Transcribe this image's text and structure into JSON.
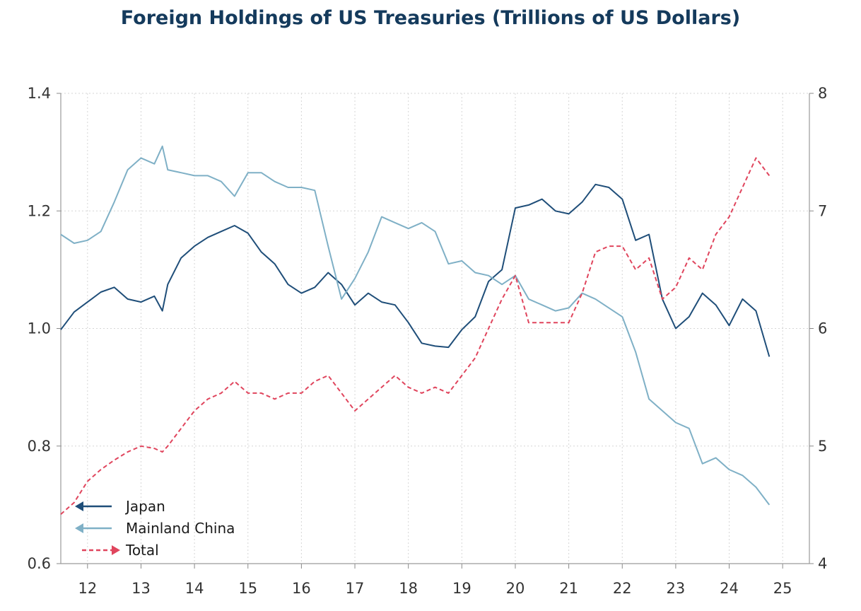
{
  "chart_data": {
    "type": "line",
    "title": "Foreign Holdings of US Treasuries (Trillions of US Dollars)",
    "x_unit": "year",
    "x_ticks": [
      "12",
      "13",
      "14",
      "15",
      "16",
      "17",
      "18",
      "19",
      "20",
      "21",
      "22",
      "23",
      "24",
      "25"
    ],
    "xlim": [
      2011.5,
      2025.5
    ],
    "y_left": {
      "lim": [
        0.6,
        1.4
      ],
      "ticks": [
        "0.6",
        "0.8",
        "1.0",
        "1.2",
        "1.4"
      ]
    },
    "y_right": {
      "lim": [
        4,
        8
      ],
      "ticks": [
        "4",
        "5",
        "6",
        "7",
        "8"
      ]
    },
    "grid": true,
    "legend_position": "bottom-left",
    "series": [
      {
        "name": "Japan",
        "axis": "left",
        "color": "#1f4e79",
        "style": "solid",
        "x": [
          2011.5,
          2011.75,
          2012.0,
          2012.25,
          2012.5,
          2012.75,
          2013.0,
          2013.25,
          2013.4,
          2013.5,
          2013.75,
          2014.0,
          2014.25,
          2014.5,
          2014.75,
          2015.0,
          2015.25,
          2015.5,
          2015.75,
          2016.0,
          2016.25,
          2016.5,
          2016.75,
          2017.0,
          2017.25,
          2017.5,
          2017.75,
          2018.0,
          2018.25,
          2018.5,
          2018.75,
          2019.0,
          2019.25,
          2019.5,
          2019.75,
          2020.0,
          2020.25,
          2020.5,
          2020.75,
          2021.0,
          2021.25,
          2021.5,
          2021.75,
          2022.0,
          2022.25,
          2022.5,
          2022.75,
          2023.0,
          2023.25,
          2023.5,
          2023.75,
          2024.0,
          2024.25,
          2024.5,
          2024.75
        ],
        "values": [
          0.998,
          1.028,
          1.045,
          1.062,
          1.07,
          1.05,
          1.045,
          1.055,
          1.03,
          1.075,
          1.12,
          1.14,
          1.155,
          1.165,
          1.175,
          1.162,
          1.13,
          1.11,
          1.075,
          1.06,
          1.07,
          1.095,
          1.075,
          1.04,
          1.06,
          1.045,
          1.04,
          1.01,
          0.975,
          0.97,
          0.968,
          0.998,
          1.02,
          1.08,
          1.1,
          1.205,
          1.21,
          1.22,
          1.2,
          1.195,
          1.215,
          1.245,
          1.24,
          1.22,
          1.15,
          1.16,
          1.05,
          1.0,
          1.02,
          1.06,
          1.04,
          1.005,
          1.05,
          1.03,
          0.952
        ]
      },
      {
        "name": "Mainland China",
        "axis": "left",
        "color": "#7fb0c6",
        "style": "solid",
        "x": [
          2011.5,
          2011.75,
          2012.0,
          2012.25,
          2012.5,
          2012.75,
          2013.0,
          2013.25,
          2013.4,
          2013.5,
          2013.75,
          2014.0,
          2014.25,
          2014.5,
          2014.75,
          2015.0,
          2015.25,
          2015.5,
          2015.75,
          2016.0,
          2016.25,
          2016.5,
          2016.75,
          2017.0,
          2017.25,
          2017.5,
          2017.75,
          2018.0,
          2018.25,
          2018.5,
          2018.75,
          2019.0,
          2019.25,
          2019.5,
          2019.75,
          2020.0,
          2020.25,
          2020.5,
          2020.75,
          2021.0,
          2021.25,
          2021.5,
          2021.75,
          2022.0,
          2022.25,
          2022.5,
          2022.75,
          2023.0,
          2023.25,
          2023.5,
          2023.75,
          2024.0,
          2024.25,
          2024.5,
          2024.75
        ],
        "values": [
          1.16,
          1.145,
          1.15,
          1.165,
          1.215,
          1.27,
          1.29,
          1.28,
          1.31,
          1.27,
          1.265,
          1.26,
          1.26,
          1.25,
          1.225,
          1.265,
          1.265,
          1.25,
          1.24,
          1.24,
          1.235,
          1.14,
          1.05,
          1.085,
          1.13,
          1.19,
          1.18,
          1.17,
          1.18,
          1.165,
          1.11,
          1.115,
          1.095,
          1.09,
          1.075,
          1.09,
          1.05,
          1.04,
          1.03,
          1.035,
          1.06,
          1.05,
          1.035,
          1.02,
          0.96,
          0.88,
          0.86,
          0.84,
          0.83,
          0.77,
          0.78,
          0.76,
          0.75,
          0.73,
          0.7
        ]
      },
      {
        "name": "Total",
        "axis": "right",
        "color": "#e0455d",
        "style": "dashed",
        "x": [
          2011.5,
          2011.75,
          2012.0,
          2012.25,
          2012.5,
          2012.75,
          2013.0,
          2013.25,
          2013.4,
          2013.5,
          2013.75,
          2014.0,
          2014.25,
          2014.5,
          2014.75,
          2015.0,
          2015.25,
          2015.5,
          2015.75,
          2016.0,
          2016.25,
          2016.5,
          2016.75,
          2017.0,
          2017.25,
          2017.5,
          2017.75,
          2018.0,
          2018.25,
          2018.5,
          2018.75,
          2019.0,
          2019.25,
          2019.5,
          2019.75,
          2020.0,
          2020.25,
          2020.5,
          2020.75,
          2021.0,
          2021.25,
          2021.5,
          2021.75,
          2022.0,
          2022.25,
          2022.5,
          2022.75,
          2023.0,
          2023.25,
          2023.5,
          2023.75,
          2024.0,
          2024.25,
          2024.5,
          2024.75
        ],
        "values": [
          4.42,
          4.52,
          4.7,
          4.8,
          4.88,
          4.95,
          5.0,
          4.98,
          4.95,
          5.0,
          5.15,
          5.3,
          5.4,
          5.45,
          5.55,
          5.45,
          5.45,
          5.4,
          5.45,
          5.45,
          5.55,
          5.6,
          5.45,
          5.3,
          5.4,
          5.5,
          5.6,
          5.5,
          5.45,
          5.5,
          5.45,
          5.6,
          5.75,
          6.0,
          6.25,
          6.45,
          6.05,
          6.05,
          6.05,
          6.05,
          6.3,
          6.65,
          6.7,
          6.7,
          6.5,
          6.6,
          6.25,
          6.35,
          6.6,
          6.5,
          6.8,
          6.95,
          7.2,
          7.45,
          7.3
        ]
      }
    ]
  }
}
